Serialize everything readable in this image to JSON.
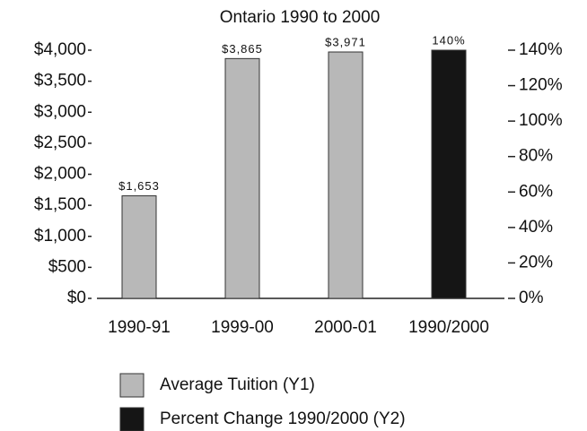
{
  "chart_data": {
    "type": "bar",
    "title": "Ontario 1990 to 2000",
    "categories": [
      "1990-91",
      "1999-00",
      "2000-01",
      "1990/2000"
    ],
    "series": [
      {
        "name": "Average Tuition (Y1)",
        "color": "#b8b8b8",
        "values": [
          1653,
          3865,
          3971,
          null
        ],
        "value_labels": [
          "$1,653",
          "$3,865",
          "$3,971",
          null
        ]
      },
      {
        "name": "Percent Change 1990/2000 (Y2)",
        "color": "#151515",
        "axis": "y2",
        "values": [
          null,
          null,
          null,
          140
        ],
        "value_labels": [
          null,
          null,
          null,
          "140%"
        ]
      }
    ],
    "ylim": [
      0,
      4000
    ],
    "yticks": [
      {
        "value": 0,
        "label": "$0"
      },
      {
        "value": 500,
        "label": "$500"
      },
      {
        "value": 1000,
        "label": "$1,000"
      },
      {
        "value": 1500,
        "label": "$1,500"
      },
      {
        "value": 2000,
        "label": "$2,000"
      },
      {
        "value": 2500,
        "label": "$2,500"
      },
      {
        "value": 3000,
        "label": "$3,000"
      },
      {
        "value": 3500,
        "label": "$3,500"
      },
      {
        "value": 4000,
        "label": "$4,000"
      }
    ],
    "y2lim": [
      0,
      140
    ],
    "y2ticks": [
      {
        "value": 0,
        "label": "0%"
      },
      {
        "value": 20,
        "label": "20%"
      },
      {
        "value": 40,
        "label": "40%"
      },
      {
        "value": 60,
        "label": "60%"
      },
      {
        "value": 80,
        "label": "80%"
      },
      {
        "value": 100,
        "label": "100%"
      },
      {
        "value": 120,
        "label": "120%"
      },
      {
        "value": 140,
        "label": "140%"
      }
    ],
    "grid": false
  }
}
